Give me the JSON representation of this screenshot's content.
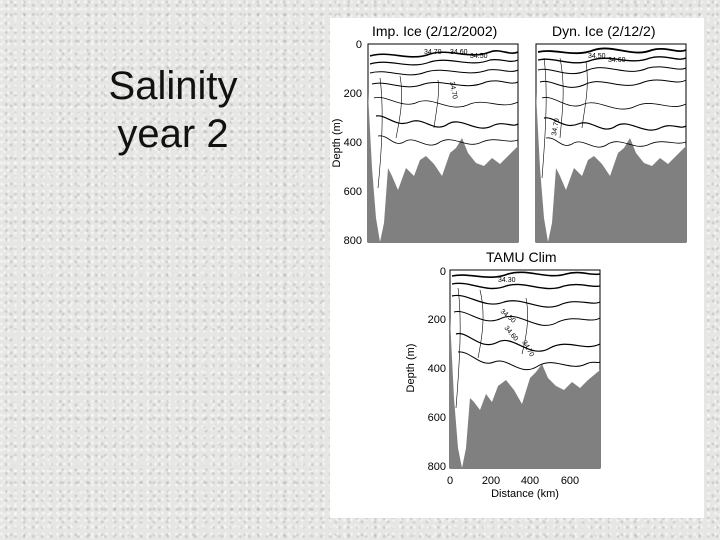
{
  "slide": {
    "title_lines": [
      "Salinity",
      "year 2"
    ]
  },
  "figure": {
    "panels": [
      {
        "title": "Imp. Ice (2/12/2002)",
        "ylabel": "Depth (m)",
        "yticks": [
          "0",
          "200",
          "400",
          "600",
          "800"
        ],
        "contour_labels": [
          "34.70",
          "34.60",
          "34.50",
          "34.70"
        ]
      },
      {
        "title": "Dyn. Ice (2/12/2)",
        "contour_labels": [
          "34.50",
          "34.60",
          "34.70"
        ]
      },
      {
        "title": "TAMU Clim",
        "ylabel": "Depth (m)",
        "xlabel": "Distance (km)",
        "yticks": [
          "0",
          "200",
          "400",
          "600",
          "800"
        ],
        "xticks": [
          "0",
          "200",
          "400",
          "600"
        ],
        "contour_labels": [
          "34.30",
          "34.50",
          "34.60",
          "34.70"
        ]
      }
    ],
    "colors": {
      "seafloor": "#808080",
      "contour": "#000000",
      "background": "#ffffff"
    }
  }
}
